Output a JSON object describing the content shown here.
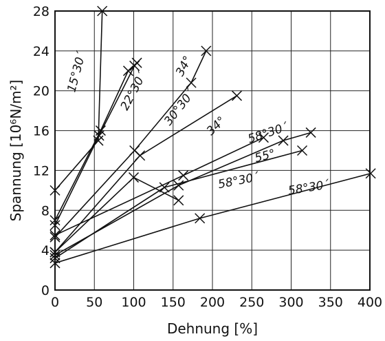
{
  "chart_data": {
    "type": "line",
    "xlabel": "Dehnung [%]",
    "ylabel": "Spannung [10⁶N/m²]",
    "xlim": [
      0,
      400
    ],
    "ylim": [
      0,
      28
    ],
    "x_ticks": [
      0,
      50,
      100,
      150,
      200,
      250,
      300,
      350,
      400
    ],
    "y_ticks": [
      0,
      4,
      8,
      12,
      16,
      20,
      24,
      28
    ],
    "grid": true,
    "marker": "x",
    "series": [
      {
        "name": "15°30´",
        "label_at": [
          32,
          21.8
        ],
        "label_angle": -75,
        "points": [
          [
            0,
            10
          ],
          [
            55,
            15
          ],
          [
            60,
            28
          ]
        ]
      },
      {
        "name": "22°30´",
        "label_at": [
          104,
          19.8
        ],
        "label_angle": -62,
        "points": [
          [
            0,
            7
          ],
          [
            58,
            16
          ],
          [
            93,
            22
          ],
          [
            104,
            22.8
          ]
        ]
      },
      {
        "name": "34°",
        "label_at": [
          168,
          22.3
        ],
        "label_angle": -62,
        "points": [
          [
            0,
            6.5
          ],
          [
            56,
            15.5
          ],
          [
            101,
            22.5
          ]
        ]
      },
      {
        "name": "30°30´",
        "label_at": [
          162,
          18.1
        ],
        "label_angle": -52,
        "points": [
          [
            0,
            5.3
          ],
          [
            101,
            14
          ],
          [
            173,
            20.8
          ],
          [
            192,
            24
          ]
        ]
      },
      {
        "name": "34°",
        "label_at": [
          208,
          16.2
        ],
        "label_angle": -44,
        "points": [
          [
            0,
            3.8
          ],
          [
            108,
            13.5
          ],
          [
            231,
            19.5
          ]
        ]
      },
      {
        "name": "58°30´",
        "label_at": [
          272,
          15.4
        ],
        "label_angle": -18,
        "points": [
          [
            0,
            5.5
          ],
          [
            163,
            11.5
          ],
          [
            265,
            15.3
          ]
        ]
      },
      {
        "name": "55°",
        "label_at": [
          268,
          13.1
        ],
        "label_angle": -15,
        "points": [
          [
            0,
            3.5
          ],
          [
            157,
            10.5
          ],
          [
            290,
            15
          ],
          [
            325,
            15.8
          ]
        ]
      },
      {
        "name": "58°30´",
        "label_at": [
          234,
          10.6
        ],
        "label_angle": -11,
        "points": [
          [
            0,
            3.2
          ],
          [
            139,
            10.3
          ],
          [
            314,
            14
          ]
        ]
      },
      {
        "name": "58°30´",
        "label_at": [
          323,
          9.9
        ],
        "label_angle": -9,
        "points": [
          [
            0,
            3.8
          ],
          [
            100,
            11.3
          ],
          [
            157,
            9
          ]
        ]
      },
      {
        "name": "",
        "label_at": null,
        "label_angle": 0,
        "points": [
          [
            0,
            2.7
          ],
          [
            184,
            7.2
          ],
          [
            401,
            11.7
          ]
        ]
      }
    ]
  }
}
